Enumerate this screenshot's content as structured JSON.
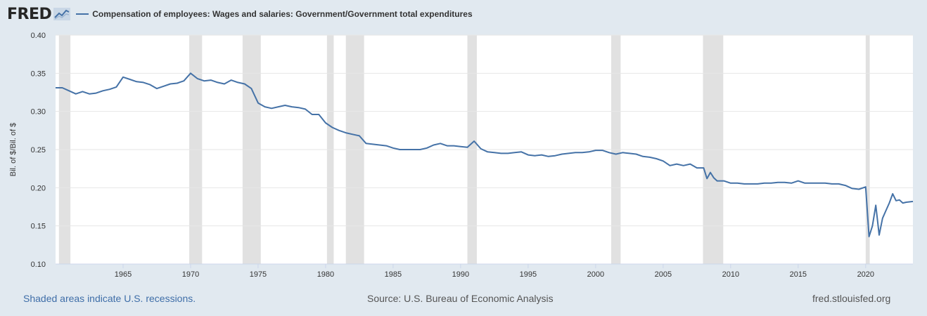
{
  "header": {
    "logo_text": "FRED",
    "legend_label": "Compensation of employees: Wages and salaries: Government/Government total expenditures"
  },
  "footer": {
    "recession_note": "Shaded areas indicate U.S. recessions.",
    "source": "Source: U.S. Bureau of Economic Analysis",
    "site": "fred.stlouisfed.org"
  },
  "colors": {
    "series": "#4572a7",
    "recession": "#e1e1e1",
    "plot_bg": "#ffffff",
    "page_bg": "#e1e9f0",
    "grid": "#e6e6e6"
  },
  "chart_data": {
    "type": "line",
    "title": "",
    "xlabel": "",
    "ylabel": "Bil. of $/Bil. of $",
    "x_range": [
      1960.0,
      2023.5
    ],
    "ylim": [
      0.1,
      0.4
    ],
    "y_ticks": [
      "0.10",
      "0.15",
      "0.20",
      "0.25",
      "0.30",
      "0.35",
      "0.40"
    ],
    "x_ticks": [
      "1965",
      "1970",
      "1975",
      "1980",
      "1985",
      "1990",
      "1995",
      "2000",
      "2005",
      "2010",
      "2015",
      "2020"
    ],
    "grid": true,
    "legend_position": "top",
    "recessions": [
      [
        1960.25,
        1961.1
      ],
      [
        1969.9,
        1970.85
      ],
      [
        1973.85,
        1975.2
      ],
      [
        1980.1,
        1980.6
      ],
      [
        1981.5,
        1982.85
      ],
      [
        1990.5,
        1991.2
      ],
      [
        2001.15,
        2001.85
      ],
      [
        2007.95,
        2009.45
      ],
      [
        2020.0,
        2020.3
      ]
    ],
    "series": [
      {
        "name": "Compensation of employees: Wages and salaries: Government/Government total expenditures",
        "x": [
          1960.0,
          1960.5,
          1961.0,
          1961.5,
          1962.0,
          1962.5,
          1963.0,
          1963.5,
          1964.0,
          1964.5,
          1965.0,
          1965.5,
          1966.0,
          1966.5,
          1967.0,
          1967.5,
          1968.0,
          1968.5,
          1969.0,
          1969.5,
          1970.0,
          1970.5,
          1971.0,
          1971.5,
          1972.0,
          1972.5,
          1973.0,
          1973.5,
          1974.0,
          1974.5,
          1975.0,
          1975.5,
          1976.0,
          1976.5,
          1977.0,
          1977.5,
          1978.0,
          1978.5,
          1979.0,
          1979.5,
          1980.0,
          1980.5,
          1981.0,
          1981.5,
          1982.0,
          1982.5,
          1983.0,
          1983.5,
          1984.0,
          1984.5,
          1985.0,
          1985.5,
          1986.0,
          1986.5,
          1987.0,
          1987.5,
          1988.0,
          1988.5,
          1989.0,
          1989.5,
          1990.0,
          1990.5,
          1991.0,
          1991.5,
          1992.0,
          1992.5,
          1993.0,
          1993.5,
          1994.0,
          1994.5,
          1995.0,
          1995.5,
          1996.0,
          1996.5,
          1997.0,
          1997.5,
          1998.0,
          1998.5,
          1999.0,
          1999.5,
          2000.0,
          2000.5,
          2001.0,
          2001.5,
          2002.0,
          2002.5,
          2003.0,
          2003.5,
          2004.0,
          2004.5,
          2005.0,
          2005.5,
          2006.0,
          2006.5,
          2007.0,
          2007.5,
          2008.0,
          2008.25,
          2008.5,
          2008.75,
          2009.0,
          2009.5,
          2010.0,
          2010.5,
          2011.0,
          2011.5,
          2012.0,
          2012.5,
          2013.0,
          2013.5,
          2014.0,
          2014.5,
          2015.0,
          2015.5,
          2016.0,
          2016.5,
          2017.0,
          2017.5,
          2018.0,
          2018.5,
          2019.0,
          2019.5,
          2020.0,
          2020.25,
          2020.5,
          2020.75,
          2021.0,
          2021.25,
          2021.5,
          2021.75,
          2022.0,
          2022.25,
          2022.5,
          2022.75,
          2023.0,
          2023.5
        ],
        "y": [
          0.331,
          0.331,
          0.327,
          0.323,
          0.326,
          0.323,
          0.324,
          0.327,
          0.329,
          0.332,
          0.345,
          0.342,
          0.339,
          0.338,
          0.335,
          0.33,
          0.333,
          0.336,
          0.337,
          0.34,
          0.35,
          0.343,
          0.34,
          0.341,
          0.338,
          0.336,
          0.341,
          0.338,
          0.336,
          0.33,
          0.311,
          0.306,
          0.304,
          0.306,
          0.308,
          0.306,
          0.305,
          0.303,
          0.296,
          0.296,
          0.285,
          0.279,
          0.275,
          0.272,
          0.27,
          0.268,
          0.258,
          0.257,
          0.256,
          0.255,
          0.252,
          0.25,
          0.25,
          0.25,
          0.25,
          0.252,
          0.256,
          0.258,
          0.255,
          0.255,
          0.254,
          0.253,
          0.261,
          0.251,
          0.247,
          0.246,
          0.245,
          0.245,
          0.246,
          0.247,
          0.243,
          0.242,
          0.243,
          0.241,
          0.242,
          0.244,
          0.245,
          0.246,
          0.246,
          0.247,
          0.249,
          0.249,
          0.246,
          0.244,
          0.246,
          0.245,
          0.244,
          0.241,
          0.24,
          0.238,
          0.235,
          0.229,
          0.231,
          0.229,
          0.231,
          0.226,
          0.226,
          0.212,
          0.22,
          0.213,
          0.209,
          0.209,
          0.206,
          0.206,
          0.205,
          0.205,
          0.205,
          0.206,
          0.206,
          0.207,
          0.207,
          0.206,
          0.209,
          0.206,
          0.206,
          0.206,
          0.206,
          0.205,
          0.205,
          0.203,
          0.199,
          0.198,
          0.201,
          0.136,
          0.15,
          0.177,
          0.138,
          0.16,
          0.17,
          0.18,
          0.192,
          0.183,
          0.184,
          0.18,
          0.181,
          0.182
        ]
      }
    ]
  }
}
